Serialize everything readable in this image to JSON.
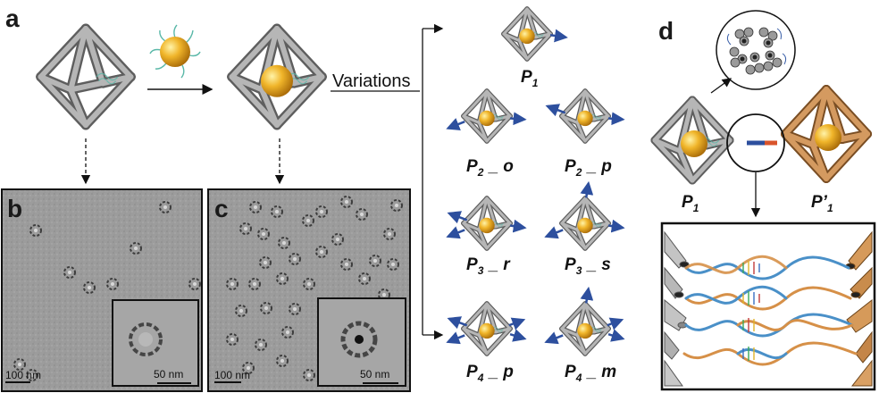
{
  "panels": {
    "a": "a",
    "b": "b",
    "c": "c",
    "d": "d"
  },
  "variations_label": "Variations",
  "p_labels": {
    "p1_main": "P",
    "p1_sub": "1",
    "p2o_main": "P",
    "p2o_sub": "2",
    "p2o_suffix": "_ o",
    "p2p_main": "P",
    "p2p_sub": "2",
    "p2p_suffix": "_ p",
    "p3r_main": "P",
    "p3r_sub": "3",
    "p3r_suffix": "_ r",
    "p3s_main": "P",
    "p3s_sub": "3",
    "p3s_suffix": "_ s",
    "p4p_main": "P",
    "p4p_sub": "4",
    "p4p_suffix": "_ p",
    "p4m_main": "P",
    "p4m_sub": "4",
    "p4m_suffix": "_ m",
    "d_left_main": "P",
    "d_left_sub": "1",
    "d_right_main": "P’",
    "d_right_sub": "1"
  },
  "scalebars": {
    "b_main": "100 nm",
    "b_inset": "50 nm",
    "c_main": "100 nm",
    "c_inset": "50 nm"
  },
  "colors": {
    "rod_gray": "#a9a9a9",
    "rod_dark": "#6f6f6f",
    "rod_tan": "#c8925a",
    "gold": "#e3a51c",
    "arrow_blue": "#2d4f9e",
    "linker_red": "#d9542b",
    "dna_blue": "#4a90c8",
    "dna_orange": "#d69048",
    "tem_bg": "#9a9a9a"
  }
}
